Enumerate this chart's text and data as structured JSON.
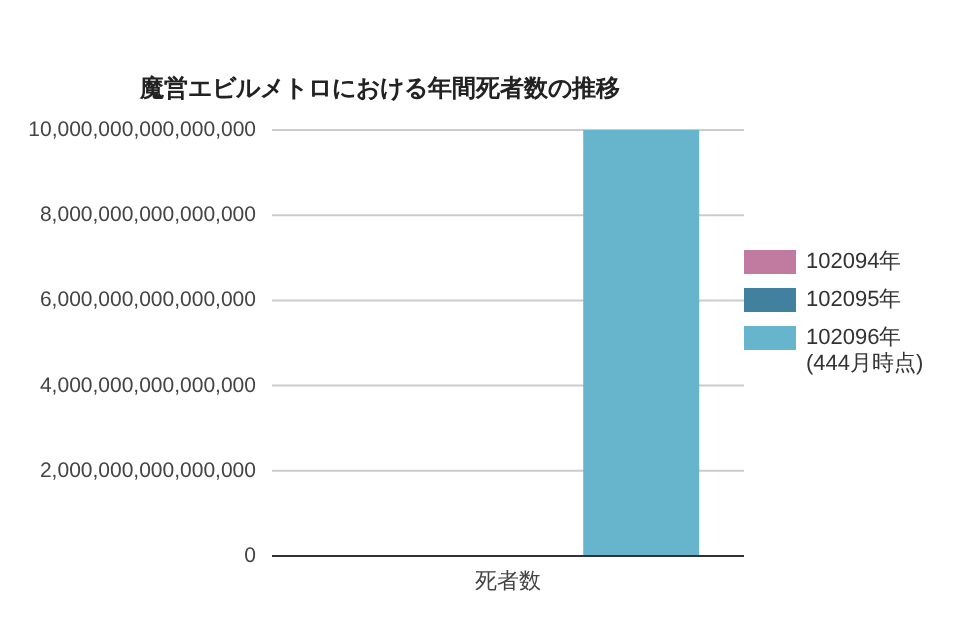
{
  "chart_data": {
    "type": "bar",
    "title": "魔営エビルメトロにおける年間死者数の推移",
    "categories": [
      "死者数"
    ],
    "series": [
      {
        "name": "102094年",
        "color": "#c27ba0",
        "values": [
          0
        ]
      },
      {
        "name": "102095年",
        "color": "#41809f",
        "values": [
          0
        ]
      },
      {
        "name": "102096年(444月時点)",
        "color": "#67b5cc",
        "values": [
          10000000000000000
        ]
      }
    ],
    "ylim": [
      0,
      10000000000000000
    ],
    "yticks": [
      0,
      {
        "value": 2000000000000000,
        "label": "2,000,000,000,000,000"
      },
      {
        "value": 4000000000000000,
        "label": "4,000,000,000,000,000"
      },
      {
        "value": 6000000000000000,
        "label": "6,000,000,000,000,000"
      },
      {
        "value": 8000000000000000,
        "label": "8,000,000,000,000,000"
      },
      {
        "value": 10000000000000000,
        "label": "10,000,000,000,000,000"
      }
    ],
    "grid": "y",
    "legend": "right"
  }
}
